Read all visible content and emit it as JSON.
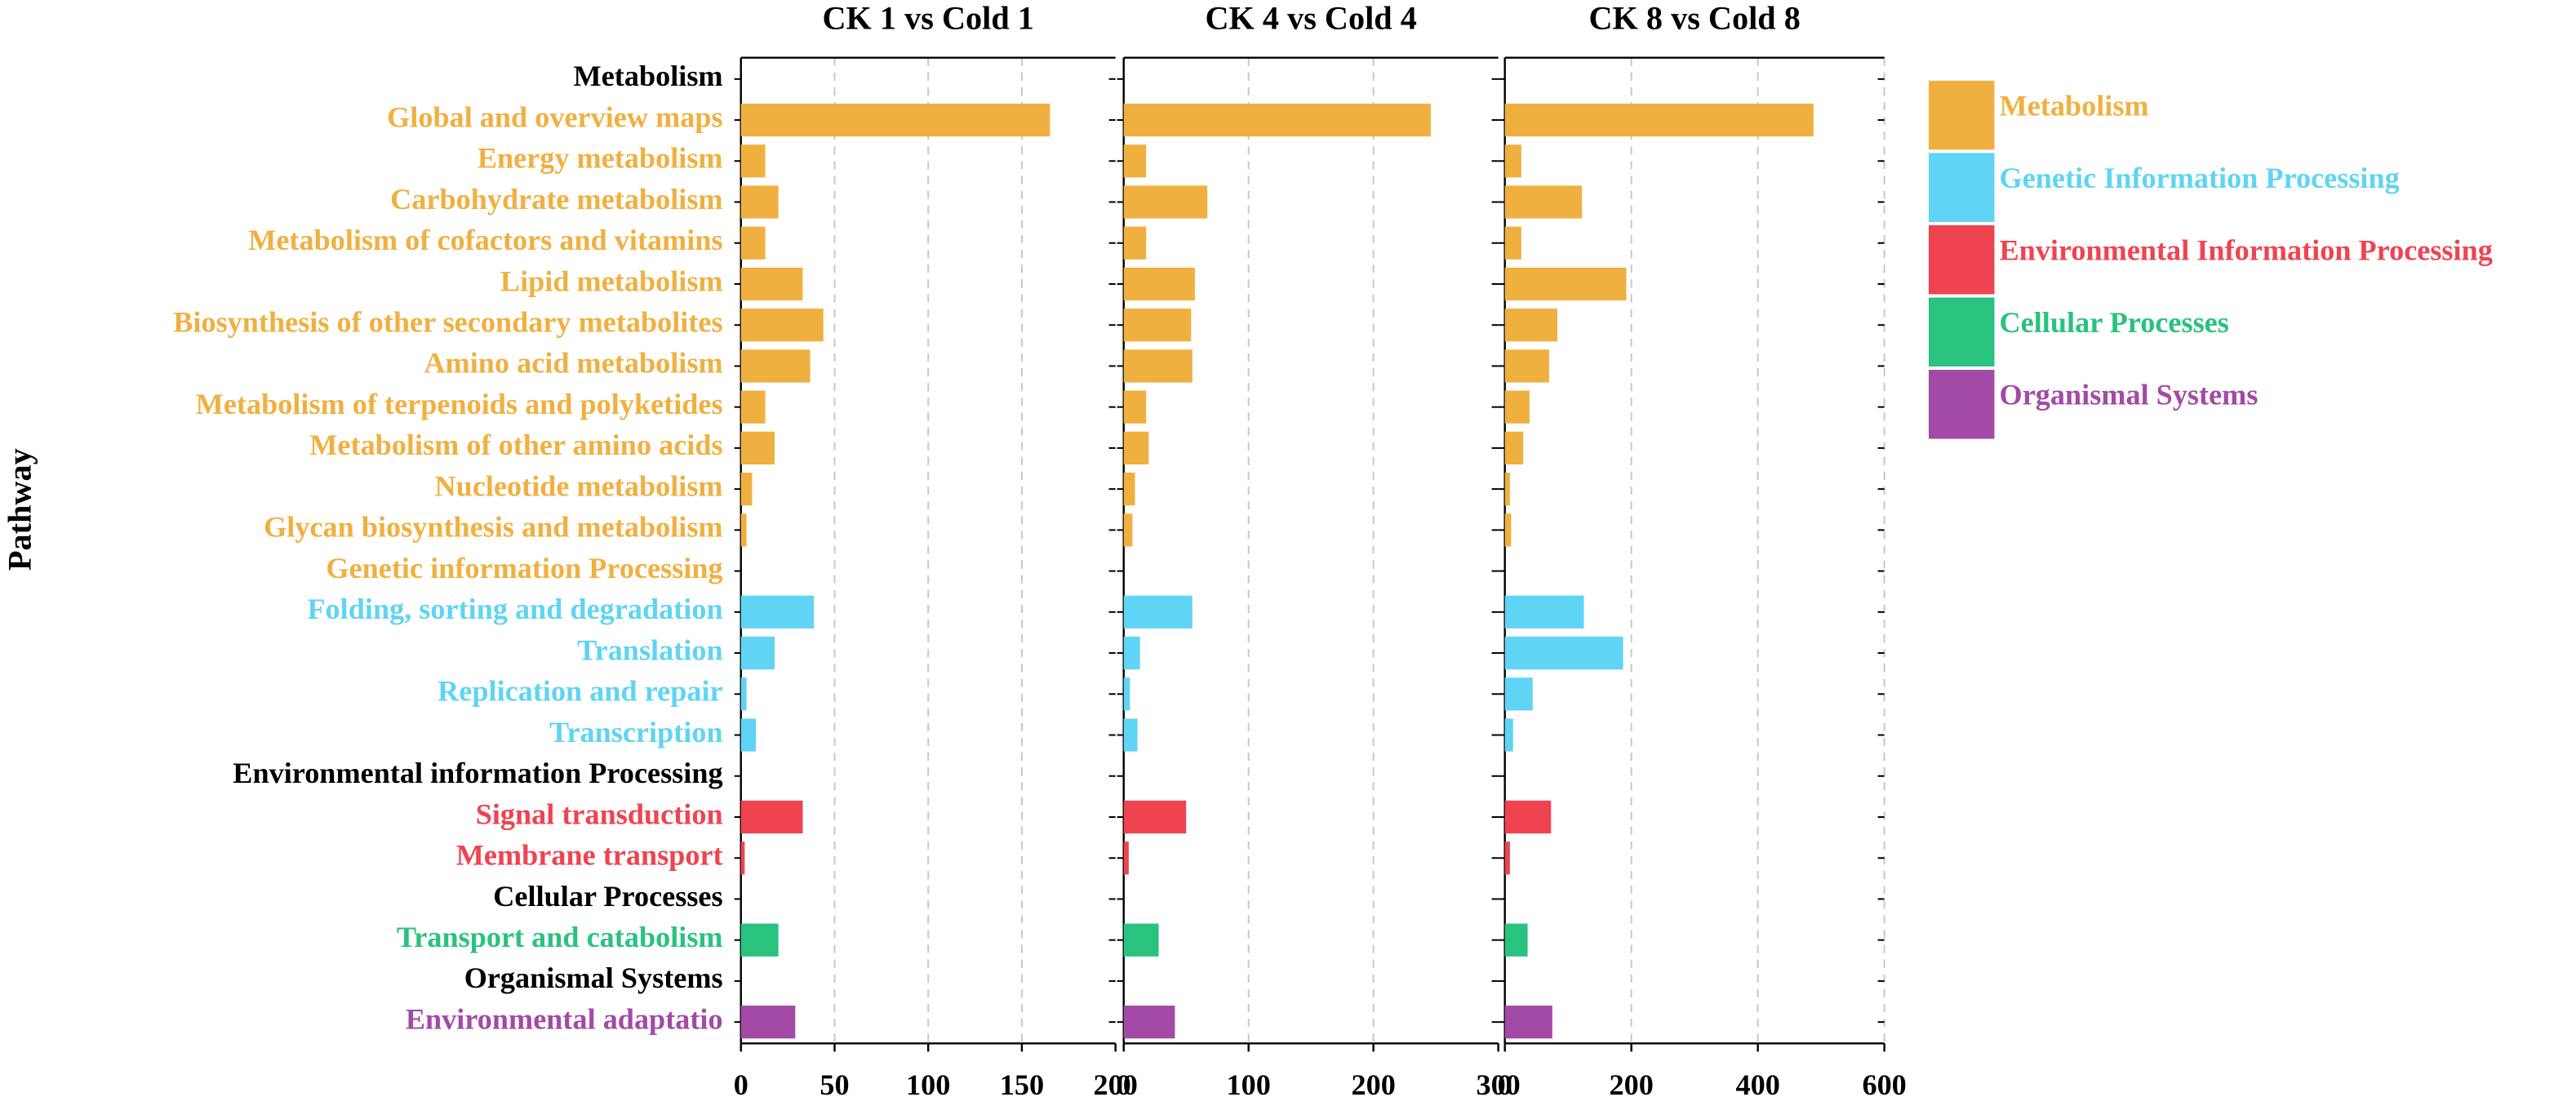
{
  "chart_data": {
    "type": "bar",
    "orientation": "horizontal",
    "ylabel": "Pathway",
    "categories": [
      "Metabolism",
      "Global and overview maps",
      "Energy metabolism",
      "Carbohydrate metabolism",
      "Metabolism of cofactors and vitamins",
      "Lipid metabolism",
      "Biosynthesis of other secondary metabolites",
      "Amino acid metabolism",
      "Metabolism of terpenoids and polyketides",
      "Metabolism of other amino acids",
      "Nucleotide metabolism",
      "Glycan biosynthesis and metabolism",
      "Genetic information Processing",
      "Folding, sorting and degradation",
      "Translation",
      "Replication and repair",
      "Transcription",
      "Environmental information Processing",
      "Signal transduction",
      "Membrane transport",
      "Cellular Processes",
      "Transport and catabolism",
      "Organismal Systems",
      "Environmental adaptatio"
    ],
    "category_colors": [
      "#000000",
      "#f0b040",
      "#f0b040",
      "#f0b040",
      "#f0b040",
      "#f0b040",
      "#f0b040",
      "#f0b040",
      "#f0b040",
      "#f0b040",
      "#f0b040",
      "#f0b040",
      "#f0b040",
      "#5fd4f4",
      "#5fd4f4",
      "#5fd4f4",
      "#5fd4f4",
      "#000000",
      "#ef4350",
      "#ef4350",
      "#000000",
      "#29c27f",
      "#000000",
      "#a24aa6"
    ],
    "panels": [
      {
        "title": "CK 1 vs Cold 1",
        "xlim": [
          0,
          200
        ],
        "xticks": [
          0,
          50,
          100,
          150,
          200
        ],
        "values": [
          null,
          165,
          13,
          20,
          13,
          33,
          44,
          37,
          13,
          18,
          6,
          3,
          null,
          39,
          18,
          3,
          8,
          null,
          33,
          2,
          null,
          20,
          null,
          29
        ]
      },
      {
        "title": "CK 4 vs Cold 4",
        "xlim": [
          0,
          300
        ],
        "xticks": [
          0,
          100,
          200,
          300
        ],
        "values": [
          null,
          246,
          18,
          67,
          18,
          57,
          54,
          55,
          18,
          20,
          9,
          7,
          null,
          55,
          13,
          5,
          11,
          null,
          50,
          4,
          null,
          28,
          null,
          41
        ]
      },
      {
        "title": "CK 8 vs Cold 8",
        "xlim": [
          0,
          600
        ],
        "xticks": [
          0,
          200,
          400,
          600
        ],
        "values": [
          null,
          488,
          26,
          122,
          26,
          192,
          83,
          70,
          39,
          29,
          8,
          10,
          null,
          125,
          187,
          44,
          13,
          null,
          73,
          8,
          null,
          36,
          null,
          75
        ]
      }
    ],
    "legend": [
      {
        "name": "Metabolism",
        "color": "#f0b040"
      },
      {
        "name": "Genetic Information Processing",
        "color": "#5fd4f4"
      },
      {
        "name": "Environmental Information Processing",
        "color": "#ef4350"
      },
      {
        "name": "Cellular Processes",
        "color": "#29c27f"
      },
      {
        "name": "Organismal Systems",
        "color": "#a24aa6"
      }
    ]
  }
}
